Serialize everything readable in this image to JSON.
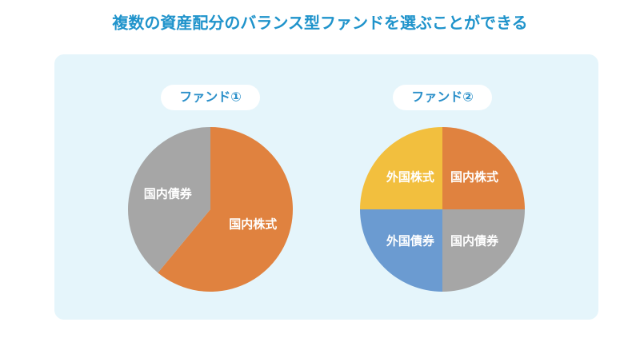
{
  "header": {
    "title": "複数の資産配分のバランス型ファンドを選ぶことができる"
  },
  "chart_data": [
    {
      "type": "pie",
      "title": "ファンド①",
      "categories": [
        "国内株式",
        "国内債券"
      ],
      "values": [
        61,
        39
      ],
      "colors": [
        "#e0823f",
        "#a6a6a6"
      ]
    },
    {
      "type": "pie",
      "title": "ファンド②",
      "categories": [
        "国内株式",
        "国内債券",
        "外国債券",
        "外国株式"
      ],
      "values": [
        25,
        25,
        25,
        25
      ],
      "colors": [
        "#e0823f",
        "#a6a6a6",
        "#6b9bd1",
        "#f2bf3e"
      ]
    }
  ]
}
